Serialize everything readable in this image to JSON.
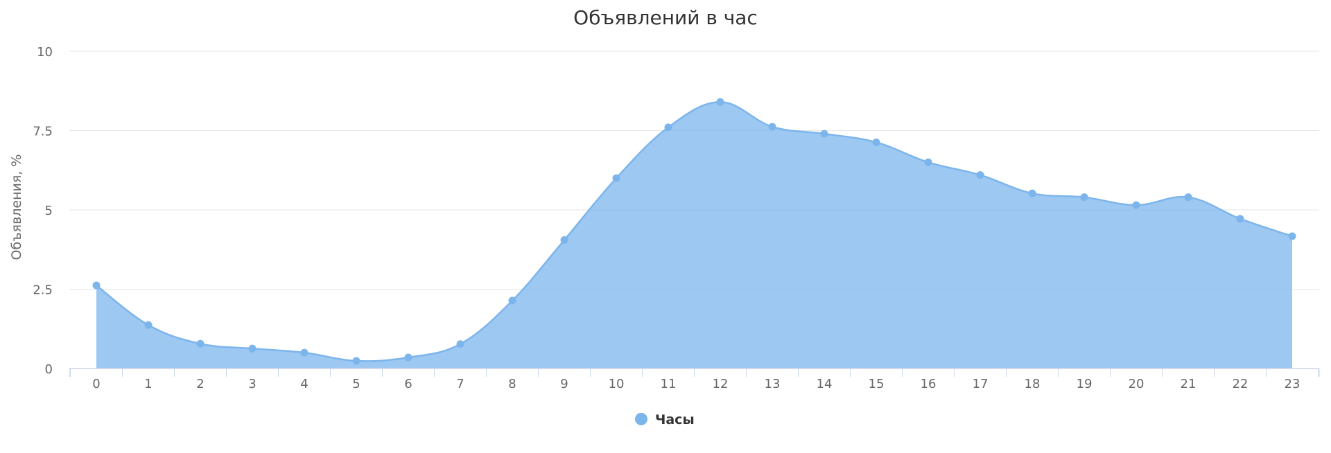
{
  "chart_data": {
    "type": "area",
    "title": "Объявлений в час",
    "xlabel": "",
    "ylabel": "Объявления, %",
    "categories": [
      "0",
      "1",
      "2",
      "3",
      "4",
      "5",
      "6",
      "7",
      "8",
      "9",
      "10",
      "11",
      "12",
      "13",
      "14",
      "15",
      "16",
      "17",
      "18",
      "19",
      "20",
      "21",
      "22",
      "23"
    ],
    "series": [
      {
        "name": "Часы",
        "values": [
          2.62,
          1.37,
          0.78,
          0.63,
          0.5,
          0.24,
          0.35,
          0.77,
          2.14,
          4.05,
          6.0,
          7.6,
          8.4,
          7.62,
          7.4,
          7.13,
          6.5,
          6.1,
          5.52,
          5.4,
          5.15,
          5.4,
          4.72,
          4.17
        ]
      }
    ],
    "ylim": [
      0,
      10
    ],
    "yticks": [
      0,
      2.5,
      5,
      7.5,
      10
    ],
    "ytick_labels": [
      "0",
      "2.5",
      "5",
      "7.5",
      "10"
    ],
    "grid": true,
    "legend": "bottom-center",
    "colors": {
      "fill": "#7cb5ec",
      "line": "#7cb5ec",
      "grid": "#e6e6e6",
      "axis": "#ccd6eb"
    }
  }
}
